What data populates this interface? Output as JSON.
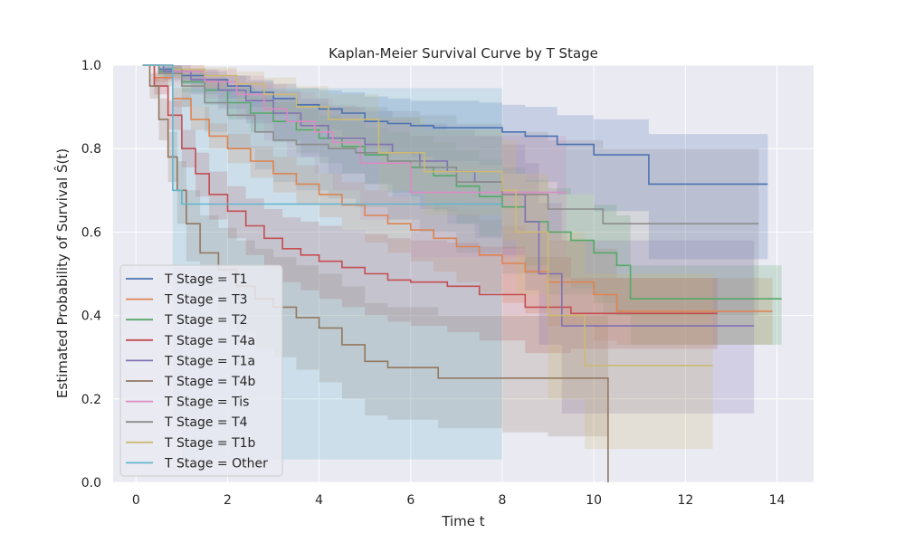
{
  "chart_data": {
    "type": "line",
    "title": "Kaplan-Meier Survival Curve by T Stage",
    "xlabel": "Time t",
    "ylabel": "Estimated Probability of Survival Ŝ(t)",
    "xlim": [
      -0.5,
      14.8
    ],
    "ylim": [
      0.0,
      1.0
    ],
    "xticks": [
      "0",
      "2",
      "4",
      "6",
      "8",
      "10",
      "12",
      "14"
    ],
    "yticks": [
      "0.0",
      "0.2",
      "0.4",
      "0.6",
      "0.8",
      "1.0"
    ],
    "grid": true,
    "legend_position": "lower-left",
    "series": [
      {
        "name": "T Stage = T1",
        "color": "#4c72b0",
        "x": [
          0.15,
          0.5,
          1.0,
          1.5,
          2.0,
          2.5,
          3.0,
          3.5,
          4.0,
          4.5,
          5.0,
          5.5,
          6.0,
          6.5,
          7.5,
          8.0,
          8.5,
          9.2,
          10.0,
          11.2,
          13.8
        ],
        "y": [
          1.0,
          0.99,
          0.975,
          0.965,
          0.95,
          0.935,
          0.92,
          0.905,
          0.895,
          0.885,
          0.865,
          0.86,
          0.855,
          0.85,
          0.85,
          0.84,
          0.83,
          0.81,
          0.785,
          0.715,
          0.715
        ],
        "lower": [
          1.0,
          0.98,
          0.955,
          0.94,
          0.92,
          0.9,
          0.88,
          0.86,
          0.845,
          0.83,
          0.8,
          0.79,
          0.78,
          0.77,
          0.76,
          0.74,
          0.72,
          0.69,
          0.65,
          0.535,
          0.535
        ],
        "upper": [
          1.0,
          1.0,
          0.99,
          0.985,
          0.975,
          0.965,
          0.955,
          0.945,
          0.94,
          0.935,
          0.925,
          0.92,
          0.915,
          0.915,
          0.91,
          0.905,
          0.9,
          0.88,
          0.87,
          0.835,
          0.835
        ]
      },
      {
        "name": "T Stage = T3",
        "color": "#dd8452",
        "x": [
          0.15,
          0.4,
          0.8,
          1.2,
          1.6,
          2.0,
          2.5,
          3.0,
          3.5,
          4.0,
          4.5,
          5.0,
          5.5,
          6.0,
          6.5,
          7.0,
          7.5,
          8.0,
          8.5,
          9.0,
          10.0,
          10.5,
          13.9
        ],
        "y": [
          1.0,
          0.97,
          0.92,
          0.87,
          0.83,
          0.8,
          0.77,
          0.74,
          0.715,
          0.69,
          0.665,
          0.64,
          0.62,
          0.605,
          0.585,
          0.565,
          0.545,
          0.525,
          0.505,
          0.48,
          0.45,
          0.41,
          0.41
        ],
        "lower": [
          1.0,
          0.96,
          0.9,
          0.845,
          0.8,
          0.765,
          0.73,
          0.695,
          0.665,
          0.635,
          0.605,
          0.575,
          0.55,
          0.53,
          0.505,
          0.48,
          0.455,
          0.43,
          0.405,
          0.375,
          0.34,
          0.33,
          0.33
        ],
        "upper": [
          1.0,
          0.985,
          0.945,
          0.9,
          0.86,
          0.835,
          0.805,
          0.78,
          0.76,
          0.74,
          0.72,
          0.7,
          0.685,
          0.675,
          0.66,
          0.645,
          0.63,
          0.615,
          0.6,
          0.58,
          0.56,
          0.49,
          0.49
        ]
      },
      {
        "name": "T Stage = T2",
        "color": "#55a868",
        "x": [
          0.15,
          0.5,
          1.0,
          1.5,
          2.0,
          2.5,
          3.0,
          3.5,
          4.0,
          4.5,
          5.0,
          5.5,
          6.0,
          6.5,
          7.0,
          7.5,
          8.0,
          8.5,
          9.0,
          9.5,
          10.0,
          10.5,
          10.8,
          14.1
        ],
        "y": [
          1.0,
          0.985,
          0.96,
          0.94,
          0.91,
          0.885,
          0.865,
          0.845,
          0.825,
          0.805,
          0.785,
          0.77,
          0.755,
          0.735,
          0.71,
          0.685,
          0.66,
          0.625,
          0.6,
          0.58,
          0.55,
          0.52,
          0.44,
          0.44
        ],
        "lower": [
          1.0,
          0.97,
          0.935,
          0.905,
          0.87,
          0.84,
          0.815,
          0.79,
          0.765,
          0.74,
          0.715,
          0.695,
          0.675,
          0.65,
          0.62,
          0.59,
          0.56,
          0.52,
          0.49,
          0.465,
          0.43,
          0.4,
          0.33,
          0.33
        ],
        "upper": [
          1.0,
          0.995,
          0.98,
          0.965,
          0.945,
          0.925,
          0.91,
          0.895,
          0.88,
          0.865,
          0.85,
          0.84,
          0.83,
          0.815,
          0.795,
          0.775,
          0.755,
          0.725,
          0.705,
          0.69,
          0.665,
          0.64,
          0.52,
          0.52
        ]
      },
      {
        "name": "T Stage = T4a",
        "color": "#c44e52",
        "x": [
          0.15,
          0.4,
          0.7,
          1.0,
          1.3,
          1.6,
          2.0,
          2.4,
          2.8,
          3.2,
          3.6,
          4.0,
          4.5,
          5.0,
          5.5,
          6.0,
          6.8,
          7.5,
          8.5,
          9.5,
          12.7
        ],
        "y": [
          1.0,
          0.95,
          0.88,
          0.8,
          0.74,
          0.69,
          0.65,
          0.615,
          0.585,
          0.56,
          0.545,
          0.53,
          0.515,
          0.5,
          0.485,
          0.48,
          0.47,
          0.45,
          0.42,
          0.405,
          0.405
        ],
        "lower": [
          1.0,
          0.93,
          0.845,
          0.755,
          0.685,
          0.63,
          0.585,
          0.545,
          0.51,
          0.48,
          0.46,
          0.44,
          0.42,
          0.4,
          0.385,
          0.375,
          0.36,
          0.34,
          0.31,
          0.32,
          0.32
        ],
        "upper": [
          1.0,
          0.97,
          0.915,
          0.845,
          0.79,
          0.745,
          0.71,
          0.68,
          0.655,
          0.635,
          0.625,
          0.615,
          0.605,
          0.595,
          0.585,
          0.58,
          0.575,
          0.565,
          0.54,
          0.49,
          0.49
        ]
      },
      {
        "name": "T Stage = T1a",
        "color": "#8172b3",
        "x": [
          0.15,
          0.6,
          1.2,
          1.8,
          2.4,
          3.0,
          3.6,
          4.2,
          5.0,
          5.6,
          6.2,
          6.8,
          7.4,
          8.0,
          8.5,
          8.8,
          9.3,
          13.5
        ],
        "y": [
          1.0,
          0.985,
          0.965,
          0.94,
          0.915,
          0.885,
          0.855,
          0.825,
          0.81,
          0.79,
          0.77,
          0.745,
          0.72,
          0.69,
          0.625,
          0.5,
          0.375,
          0.375
        ],
        "lower": [
          1.0,
          0.965,
          0.93,
          0.895,
          0.86,
          0.82,
          0.78,
          0.74,
          0.715,
          0.685,
          0.655,
          0.62,
          0.585,
          0.545,
          0.46,
          0.33,
          0.165,
          0.165
        ],
        "upper": [
          1.0,
          1.0,
          0.99,
          0.975,
          0.96,
          0.94,
          0.92,
          0.9,
          0.89,
          0.875,
          0.86,
          0.845,
          0.83,
          0.81,
          0.765,
          0.67,
          0.58,
          0.58
        ]
      },
      {
        "name": "T Stage = T4b",
        "color": "#937860",
        "x": [
          0.15,
          0.3,
          0.5,
          0.7,
          0.9,
          1.1,
          1.4,
          1.8,
          2.2,
          2.6,
          3.0,
          3.5,
          4.0,
          4.5,
          5.0,
          5.5,
          6.6,
          8.0,
          9.0,
          10.3,
          10.31
        ],
        "y": [
          1.0,
          0.95,
          0.87,
          0.78,
          0.7,
          0.62,
          0.55,
          0.51,
          0.47,
          0.44,
          0.42,
          0.395,
          0.37,
          0.33,
          0.29,
          0.275,
          0.25,
          0.25,
          0.25,
          0.25,
          0.0
        ],
        "lower": [
          1.0,
          0.92,
          0.82,
          0.72,
          0.62,
          0.53,
          0.45,
          0.4,
          0.36,
          0.32,
          0.3,
          0.27,
          0.24,
          0.2,
          0.16,
          0.15,
          0.13,
          0.12,
          0.11,
          0.08,
          0.08
        ],
        "upper": [
          1.0,
          0.98,
          0.92,
          0.84,
          0.77,
          0.7,
          0.64,
          0.61,
          0.58,
          0.56,
          0.54,
          0.52,
          0.5,
          0.47,
          0.43,
          0.42,
          0.4,
          0.4,
          0.4,
          0.4,
          0.4
        ]
      },
      {
        "name": "T Stage = Tis",
        "color": "#da8bc3",
        "x": [
          0.15,
          0.8,
          1.5,
          2.2,
          2.8,
          3.3,
          3.9,
          4.3,
          4.9,
          6.0,
          9.4
        ],
        "y": [
          1.0,
          0.985,
          0.96,
          0.93,
          0.895,
          0.865,
          0.84,
          0.815,
          0.765,
          0.695,
          0.695
        ],
        "lower": [
          1.0,
          0.96,
          0.92,
          0.87,
          0.82,
          0.78,
          0.74,
          0.7,
          0.63,
          0.54,
          0.54
        ],
        "upper": [
          1.0,
          1.0,
          0.99,
          0.975,
          0.955,
          0.935,
          0.92,
          0.9,
          0.87,
          0.83,
          0.83
        ]
      },
      {
        "name": "T Stage = T4",
        "color": "#8c8c8c",
        "x": [
          0.15,
          0.5,
          1.0,
          1.5,
          2.0,
          2.6,
          3.0,
          3.5,
          4.2,
          4.8,
          5.5,
          6.2,
          7.0,
          8.0,
          9.0,
          10.2,
          13.6
        ],
        "y": [
          1.0,
          0.98,
          0.95,
          0.91,
          0.88,
          0.84,
          0.82,
          0.81,
          0.8,
          0.79,
          0.77,
          0.755,
          0.72,
          0.69,
          0.655,
          0.62,
          0.62
        ],
        "lower": [
          1.0,
          0.95,
          0.9,
          0.84,
          0.8,
          0.75,
          0.72,
          0.7,
          0.68,
          0.66,
          0.63,
          0.6,
          0.55,
          0.5,
          0.45,
          0.4,
          0.4
        ],
        "upper": [
          1.0,
          1.0,
          0.99,
          0.97,
          0.95,
          0.93,
          0.92,
          0.91,
          0.905,
          0.9,
          0.89,
          0.88,
          0.86,
          0.84,
          0.82,
          0.8,
          0.8
        ]
      },
      {
        "name": "T Stage = T1b",
        "color": "#ccb974",
        "x": [
          0.15,
          0.8,
          1.5,
          2.2,
          2.8,
          3.5,
          4.2,
          5.3,
          6.3,
          8.0,
          8.3,
          9.0,
          9.8,
          12.6
        ],
        "y": [
          1.0,
          0.99,
          0.975,
          0.955,
          0.93,
          0.9,
          0.87,
          0.79,
          0.745,
          0.7,
          0.6,
          0.4,
          0.28,
          0.28
        ],
        "lower": [
          1.0,
          0.97,
          0.945,
          0.915,
          0.88,
          0.84,
          0.8,
          0.7,
          0.64,
          0.58,
          0.45,
          0.2,
          0.08,
          0.08
        ],
        "upper": [
          1.0,
          1.0,
          0.995,
          0.985,
          0.97,
          0.95,
          0.93,
          0.875,
          0.845,
          0.82,
          0.74,
          0.6,
          0.5,
          0.5
        ]
      },
      {
        "name": "T Stage = Other",
        "color": "#64b5cd",
        "x": [
          0.15,
          0.8,
          1.0,
          8.0
        ],
        "y": [
          1.0,
          0.7,
          0.667,
          0.667
        ],
        "lower": [
          1.0,
          0.15,
          0.055,
          0.055
        ],
        "upper": [
          1.0,
          0.95,
          0.945,
          0.945
        ]
      }
    ]
  }
}
